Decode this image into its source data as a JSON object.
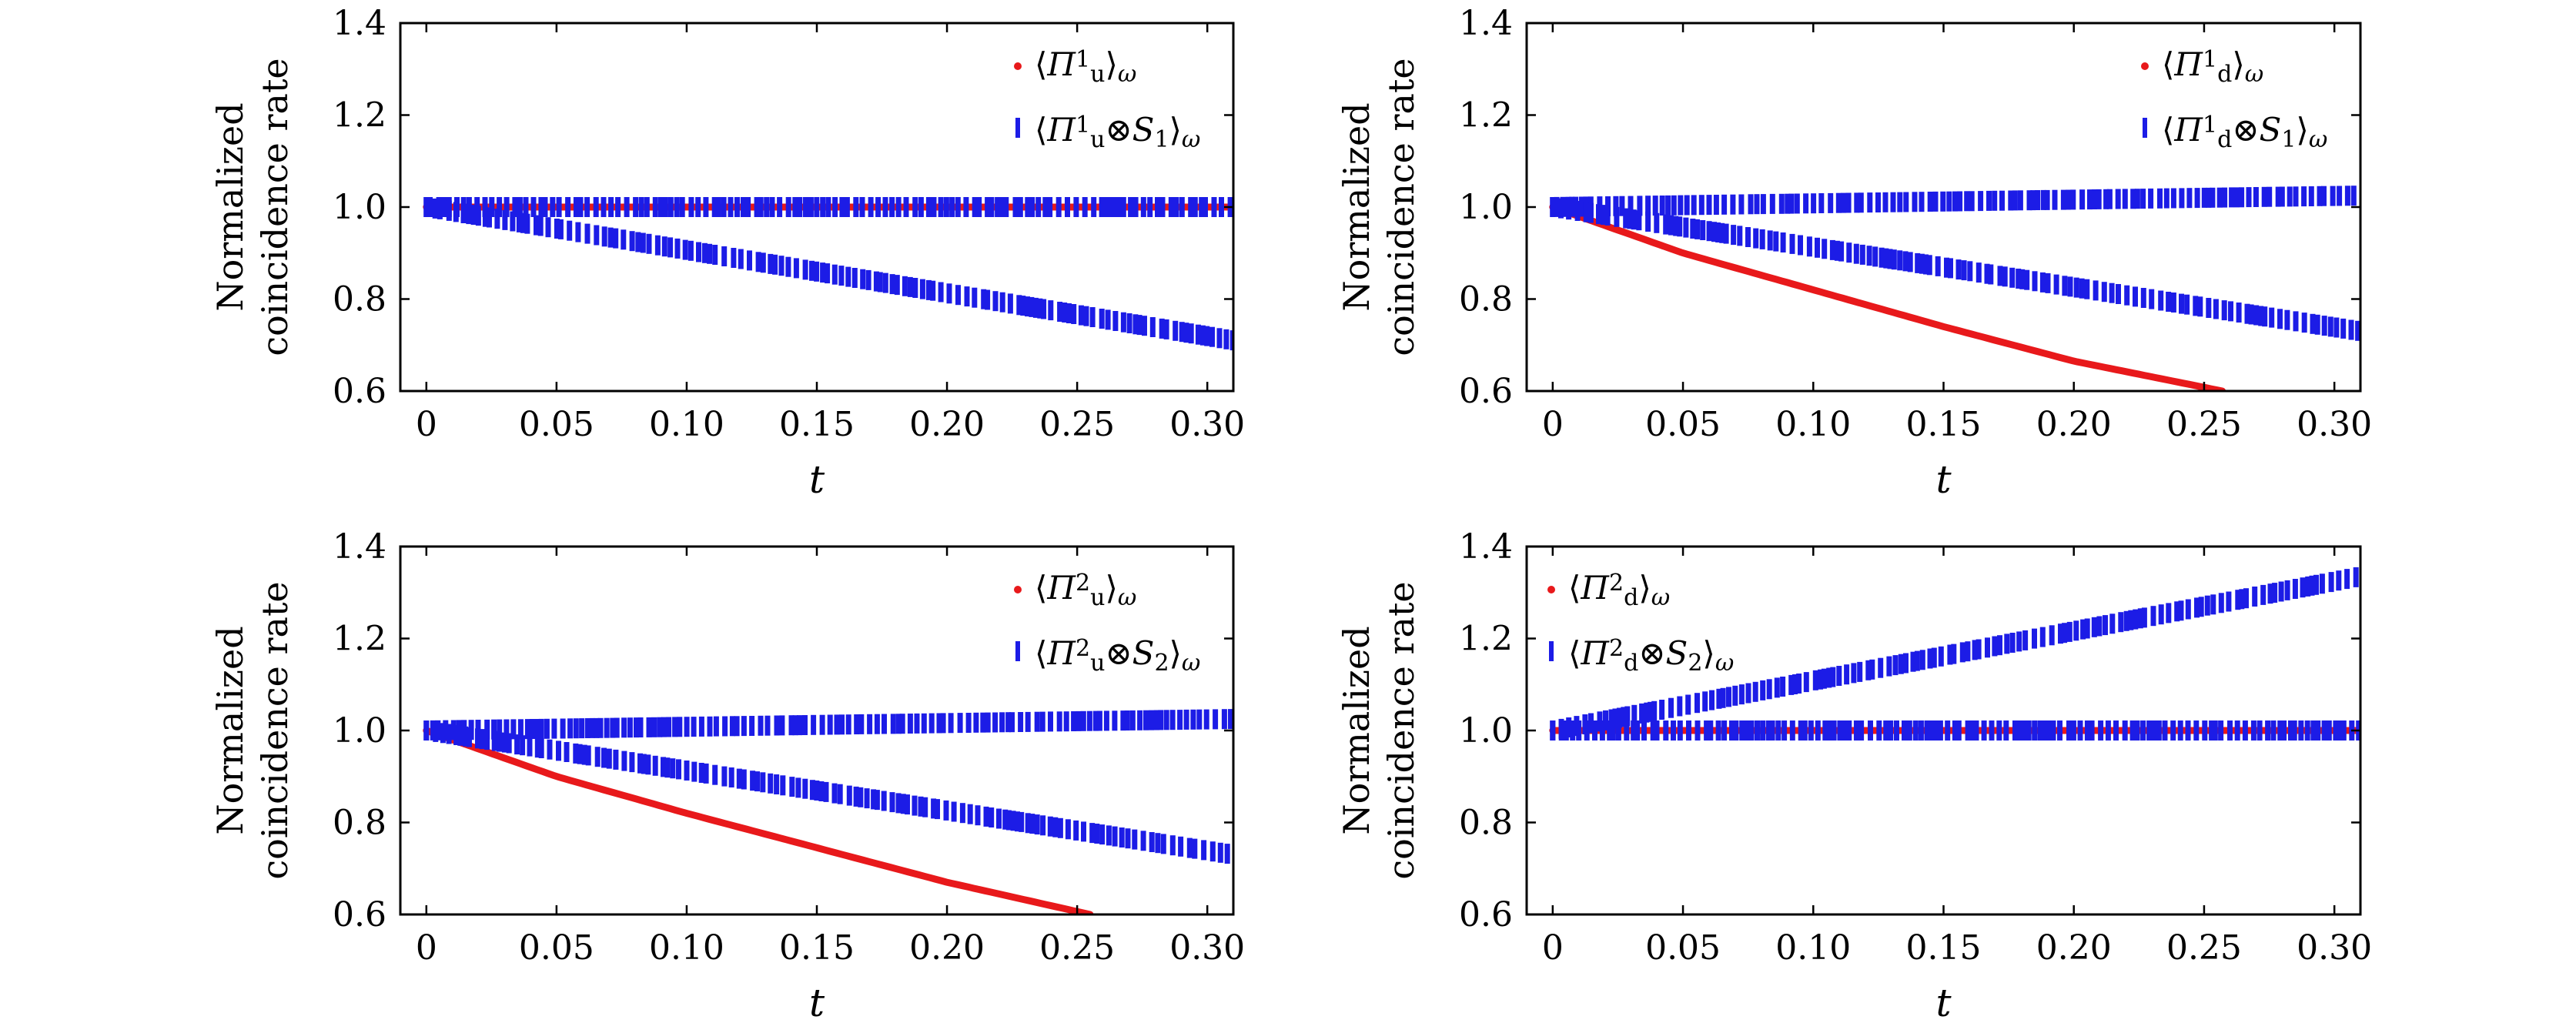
{
  "figure": {
    "colors": {
      "series_red": "#e8191b",
      "series_blue": "#1c1ce6",
      "axis": "#000000"
    }
  },
  "chart_data": [
    {
      "type": "line",
      "panel": "top-left",
      "xlabel": "t",
      "ylabel_lines": [
        "Normalized",
        "coincidence rate"
      ],
      "xlim": [
        -0.01,
        0.31
      ],
      "ylim": [
        0.6,
        1.4
      ],
      "xticks": [
        0,
        0.05,
        0.1,
        0.15,
        0.2,
        0.25,
        0.3
      ],
      "xtick_labels": [
        "0",
        "0.05",
        "0.10",
        "0.15",
        "0.20",
        "0.25",
        "0.30"
      ],
      "yticks": [
        0.6,
        0.8,
        1.0,
        1.2,
        1.4
      ],
      "ytick_labels": [
        "0.6",
        "0.8",
        "1.0",
        "1.2",
        "1.4"
      ],
      "legend_position": "top-right",
      "legend_entries": [
        "⟨Π¹ᵤ⟩ω",
        "⟨Π¹ᵤ⊗S₁⟩ω"
      ],
      "series": [
        {
          "label": "⟨Π¹ᵤ⟩ω",
          "marker": "dot",
          "color": "#e8191b",
          "x": [
            0,
            0.31
          ],
          "y": [
            1.0,
            1.0
          ]
        },
        {
          "label": "⟨Π¹ᵤ⊗S₁⟩ω",
          "marker": "bar",
          "color": "#1c1ce6",
          "x": [
            0,
            0.31
          ],
          "y": [
            1.0,
            1.0
          ]
        },
        {
          "label": "⟨Π¹ᵤ⊗S₁⟩ω",
          "marker": "bar",
          "color": "#1c1ce6",
          "x": [
            0,
            0.31
          ],
          "y": [
            1.0,
            0.71
          ]
        }
      ]
    },
    {
      "type": "line",
      "panel": "top-right",
      "xlabel": "t",
      "ylabel_lines": [
        "Normalized",
        "coincidence rate"
      ],
      "xlim": [
        -0.01,
        0.31
      ],
      "ylim": [
        0.6,
        1.4
      ],
      "xticks": [
        0,
        0.05,
        0.1,
        0.15,
        0.2,
        0.25,
        0.3
      ],
      "xtick_labels": [
        "0",
        "0.05",
        "0.10",
        "0.15",
        "0.20",
        "0.25",
        "0.30"
      ],
      "yticks": [
        0.6,
        0.8,
        1.0,
        1.2,
        1.4
      ],
      "ytick_labels": [
        "0.6",
        "0.8",
        "1.0",
        "1.2",
        "1.4"
      ],
      "legend_position": "top-right",
      "legend_entries": [
        "⟨Π¹d⟩ω",
        "⟨Π¹d⊗S₁⟩ω"
      ],
      "series": [
        {
          "label": "⟨Π¹d⟩ω",
          "marker": "dot",
          "color": "#e8191b",
          "x": [
            0,
            0.05,
            0.1,
            0.15,
            0.2,
            0.257
          ],
          "y": [
            1.0,
            0.9,
            0.82,
            0.74,
            0.665,
            0.6
          ]
        },
        {
          "label": "⟨Π¹d⊗S₁⟩ω",
          "marker": "bar",
          "color": "#1c1ce6",
          "x": [
            0,
            0.31
          ],
          "y": [
            1.0,
            1.025
          ]
        },
        {
          "label": "⟨Π¹d⊗S₁⟩ω",
          "marker": "bar",
          "color": "#1c1ce6",
          "x": [
            0,
            0.31
          ],
          "y": [
            1.0,
            0.73
          ]
        }
      ]
    },
    {
      "type": "line",
      "panel": "bottom-left",
      "xlabel": "t",
      "ylabel_lines": [
        "Normalized",
        "coincidence rate"
      ],
      "xlim": [
        -0.01,
        0.31
      ],
      "ylim": [
        0.6,
        1.4
      ],
      "xticks": [
        0,
        0.05,
        0.1,
        0.15,
        0.2,
        0.25,
        0.3
      ],
      "xtick_labels": [
        "0",
        "0.05",
        "0.10",
        "0.15",
        "0.20",
        "0.25",
        "0.30"
      ],
      "yticks": [
        0.6,
        0.8,
        1.0,
        1.2,
        1.4
      ],
      "ytick_labels": [
        "0.6",
        "0.8",
        "1.0",
        "1.2",
        "1.4"
      ],
      "legend_position": "top-right",
      "legend_entries": [
        "⟨Π²ᵤ⟩ω",
        "⟨Π²ᵤ⊗S₂⟩ω"
      ],
      "series": [
        {
          "label": "⟨Π²ᵤ⟩ω",
          "marker": "dot",
          "color": "#e8191b",
          "x": [
            0,
            0.05,
            0.1,
            0.15,
            0.2,
            0.255
          ],
          "y": [
            1.0,
            0.9,
            0.82,
            0.745,
            0.67,
            0.6
          ]
        },
        {
          "label": "⟨Π²ᵤ⊗S₂⟩ω",
          "marker": "bar",
          "color": "#1c1ce6",
          "x": [
            0,
            0.31
          ],
          "y": [
            1.0,
            1.025
          ]
        },
        {
          "label": "⟨Π²ᵤ⊗S₂⟩ω",
          "marker": "bar",
          "color": "#1c1ce6",
          "x": [
            0,
            0.31
          ],
          "y": [
            1.0,
            0.73
          ]
        }
      ]
    },
    {
      "type": "line",
      "panel": "bottom-right",
      "xlabel": "t",
      "ylabel_lines": [
        "Normalized",
        "coincidence rate"
      ],
      "xlim": [
        -0.01,
        0.31
      ],
      "ylim": [
        0.6,
        1.4
      ],
      "xticks": [
        0,
        0.05,
        0.1,
        0.15,
        0.2,
        0.25,
        0.3
      ],
      "xtick_labels": [
        "0",
        "0.05",
        "0.10",
        "0.15",
        "0.20",
        "0.25",
        "0.30"
      ],
      "yticks": [
        0.6,
        0.8,
        1.0,
        1.2,
        1.4
      ],
      "ytick_labels": [
        "0.6",
        "0.8",
        "1.0",
        "1.2",
        "1.4"
      ],
      "legend_position": "top-left",
      "legend_entries": [
        "⟨Π²d⟩ω",
        "⟨Π²d⊗S₂⟩ω"
      ],
      "series": [
        {
          "label": "⟨Π²d⟩ω",
          "marker": "dot",
          "color": "#e8191b",
          "x": [
            0,
            0.31
          ],
          "y": [
            1.0,
            1.0
          ]
        },
        {
          "label": "⟨Π²d⊗S₂⟩ω",
          "marker": "bar",
          "color": "#1c1ce6",
          "x": [
            0,
            0.31
          ],
          "y": [
            1.0,
            1.0
          ]
        },
        {
          "label": "⟨Π²d⊗S₂⟩ω",
          "marker": "bar",
          "color": "#1c1ce6",
          "x": [
            0,
            0.31
          ],
          "y": [
            1.0,
            1.335
          ]
        }
      ]
    }
  ]
}
